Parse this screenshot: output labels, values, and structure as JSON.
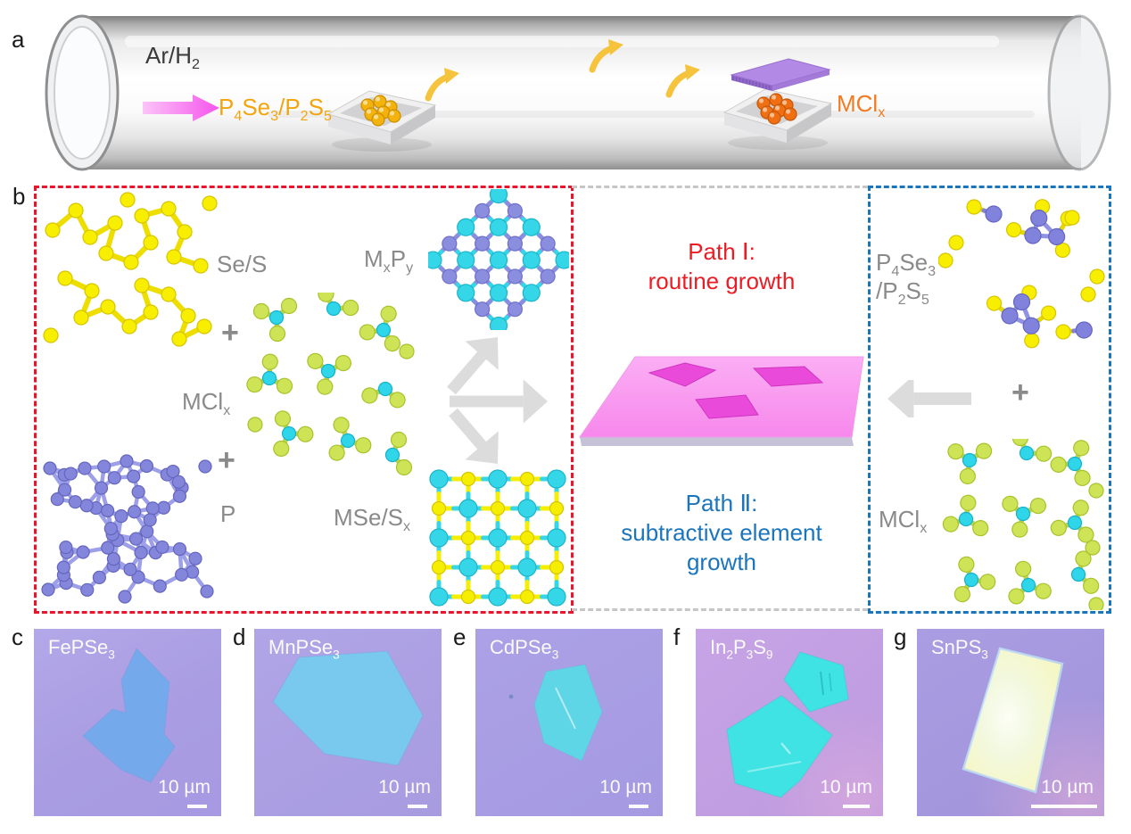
{
  "colors": {
    "path1_red": "#ec1c24",
    "path2_blue": "#1b75bc",
    "box_red": "#e9152d",
    "box_blue": "#1b75bc",
    "gray_label": "#8a8a8a",
    "precursor_gold": "#f2a50f",
    "mclx_orange": "#f47a20",
    "substrate_pink": "#f788ec",
    "substrate_flake_pink": "#ea4ada",
    "arrow_pink": "#f554ec",
    "vapor_arrow_yellow": "#f6c33c",
    "se_s_yellow": "#f7ee00",
    "phosphorus_violet": "#8486dc",
    "metal_cyan": "#35d6e8",
    "chloride_green": "#cfe356"
  },
  "panel_a": {
    "label": "a",
    "carrier_gas": "Ar/H<sub>2</sub>",
    "precursor": "P<sub>4</sub>Se<sub>3</sub>/P<sub>2</sub>S<sub>5</sub>",
    "metal_salt": "MCl<sub>x</sub>"
  },
  "panel_b": {
    "label": "b",
    "left_box": {
      "selenium_sulfur": "Se/S",
      "plus_1": "+",
      "metal_chloride": "MCl<sub>x</sub>",
      "plus_2": "+",
      "phosphorus": "P",
      "metal_phosphide": "M<sub>x</sub>P<sub>y</sub>",
      "metal_selenide_sulfide": "MSe/S<sub>x</sub>"
    },
    "center": {
      "path1_title": "Path Ⅰ:",
      "path1_subtitle": "routine growth",
      "path2_title": "Path Ⅱ:",
      "path2_subtitle_line1": "subtractive element",
      "path2_subtitle_line2": "growth"
    },
    "right_box": {
      "precursor_line1": "P<sub>4</sub>Se<sub>3</sub>",
      "precursor_line2": "/P<sub>2</sub>S<sub>5</sub>",
      "plus": "+",
      "metal_chloride": "MCl<sub>x</sub>"
    }
  },
  "micrographs": [
    {
      "panel_label": "c",
      "compound": "FePSe<sub>3</sub>",
      "scale_bar": "10 µm",
      "flake_color": "#74aaec"
    },
    {
      "panel_label": "d",
      "compound": "MnPSe<sub>3</sub>",
      "scale_bar": "10 µm",
      "flake_color": "#79c9ef"
    },
    {
      "panel_label": "e",
      "compound": "CdPSe<sub>3</sub>",
      "scale_bar": "10 µm",
      "flake_color": "#5fd6e6"
    },
    {
      "panel_label": "f",
      "compound": "In<sub>2</sub>P<sub>3</sub>S<sub>9</sub>",
      "scale_bar": "10 µm",
      "flake_color": "#3fe3e3"
    },
    {
      "panel_label": "g",
      "compound": "SnPS<sub>3</sub>",
      "scale_bar": "10 µm",
      "flake_color": "#f4f6c0"
    }
  ]
}
